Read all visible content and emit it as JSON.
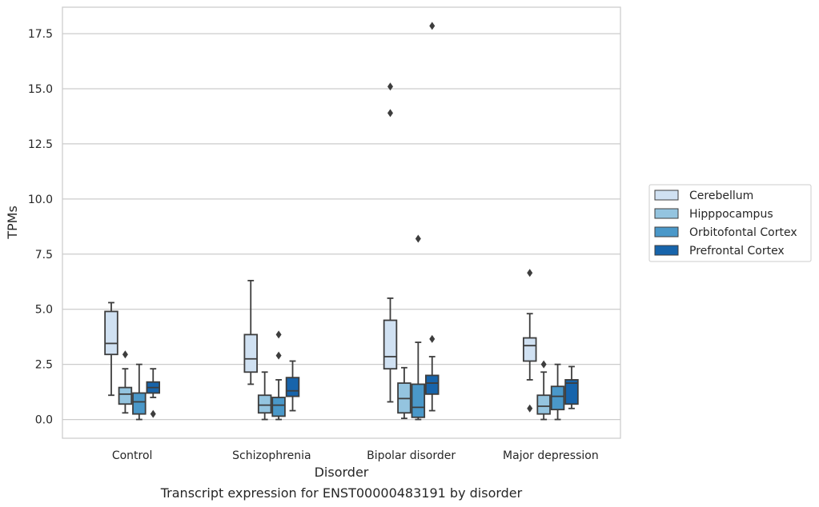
{
  "chart_data": {
    "type": "box",
    "title": "",
    "caption": "Transcript expression for ENST00000483191 by disorder",
    "xlabel": "Disorder",
    "ylabel": "TPMs",
    "ylim": [
      -0.85,
      18.7
    ],
    "yticks": [
      0.0,
      2.5,
      5.0,
      7.5,
      10.0,
      12.5,
      15.0,
      17.5
    ],
    "ytick_labels": [
      "0.0",
      "2.5",
      "5.0",
      "7.5",
      "10.0",
      "12.5",
      "15.0",
      "17.5"
    ],
    "grid": true,
    "legend_position": "right",
    "categories": [
      "Control",
      "Schizophrenia",
      "Bipolar disorder",
      "Major depression"
    ],
    "series": [
      {
        "name": "Cerebellum",
        "color": "#d0e1f2",
        "boxes": [
          {
            "whislo": 1.1,
            "q1": 2.95,
            "med": 3.45,
            "q3": 4.9,
            "whishi": 5.3,
            "fliers": []
          },
          {
            "whislo": 1.6,
            "q1": 2.15,
            "med": 2.75,
            "q3": 3.85,
            "whishi": 6.3,
            "fliers": []
          },
          {
            "whislo": 0.8,
            "q1": 2.3,
            "med": 2.85,
            "q3": 4.5,
            "whishi": 5.5,
            "fliers": [
              15.1,
              13.9
            ]
          },
          {
            "whislo": 1.8,
            "q1": 2.65,
            "med": 3.35,
            "q3": 3.7,
            "whishi": 4.8,
            "fliers": [
              6.65,
              0.5
            ]
          }
        ]
      },
      {
        "name": "Hipppocampus",
        "color": "#94c4df",
        "boxes": [
          {
            "whislo": 0.3,
            "q1": 0.7,
            "med": 1.15,
            "q3": 1.45,
            "whishi": 2.3,
            "fliers": [
              2.95
            ]
          },
          {
            "whislo": 0.0,
            "q1": 0.3,
            "med": 0.65,
            "q3": 1.1,
            "whishi": 2.15,
            "fliers": []
          },
          {
            "whislo": 0.05,
            "q1": 0.3,
            "med": 0.95,
            "q3": 1.65,
            "whishi": 2.35,
            "fliers": []
          },
          {
            "whislo": 0.0,
            "q1": 0.25,
            "med": 0.6,
            "q3": 1.1,
            "whishi": 2.15,
            "fliers": [
              2.5
            ]
          }
        ]
      },
      {
        "name": "Orbitofontal Cortex",
        "color": "#4a98c9",
        "boxes": [
          {
            "whislo": 0.0,
            "q1": 0.25,
            "med": 0.8,
            "q3": 1.2,
            "whishi": 2.5,
            "fliers": []
          },
          {
            "whislo": 0.0,
            "q1": 0.15,
            "med": 0.65,
            "q3": 1.0,
            "whishi": 1.8,
            "fliers": [
              3.85,
              2.9
            ]
          },
          {
            "whislo": 0.0,
            "q1": 0.1,
            "med": 0.55,
            "q3": 1.6,
            "whishi": 3.5,
            "fliers": [
              8.2
            ]
          },
          {
            "whislo": 0.0,
            "q1": 0.45,
            "med": 1.05,
            "q3": 1.5,
            "whishi": 2.5,
            "fliers": []
          }
        ]
      },
      {
        "name": "Prefrontal Cortex",
        "color": "#1764ab",
        "boxes": [
          {
            "whislo": 1.0,
            "q1": 1.2,
            "med": 1.45,
            "q3": 1.7,
            "whishi": 2.3,
            "fliers": [
              0.25
            ]
          },
          {
            "whislo": 0.4,
            "q1": 1.05,
            "med": 1.3,
            "q3": 1.9,
            "whishi": 2.65,
            "fliers": []
          },
          {
            "whislo": 0.4,
            "q1": 1.15,
            "med": 1.65,
            "q3": 2.0,
            "whishi": 2.85,
            "fliers": [
              17.85,
              3.65
            ]
          },
          {
            "whislo": 0.5,
            "q1": 0.7,
            "med": 1.65,
            "q3": 1.8,
            "whishi": 2.4,
            "fliers": []
          }
        ]
      }
    ]
  }
}
